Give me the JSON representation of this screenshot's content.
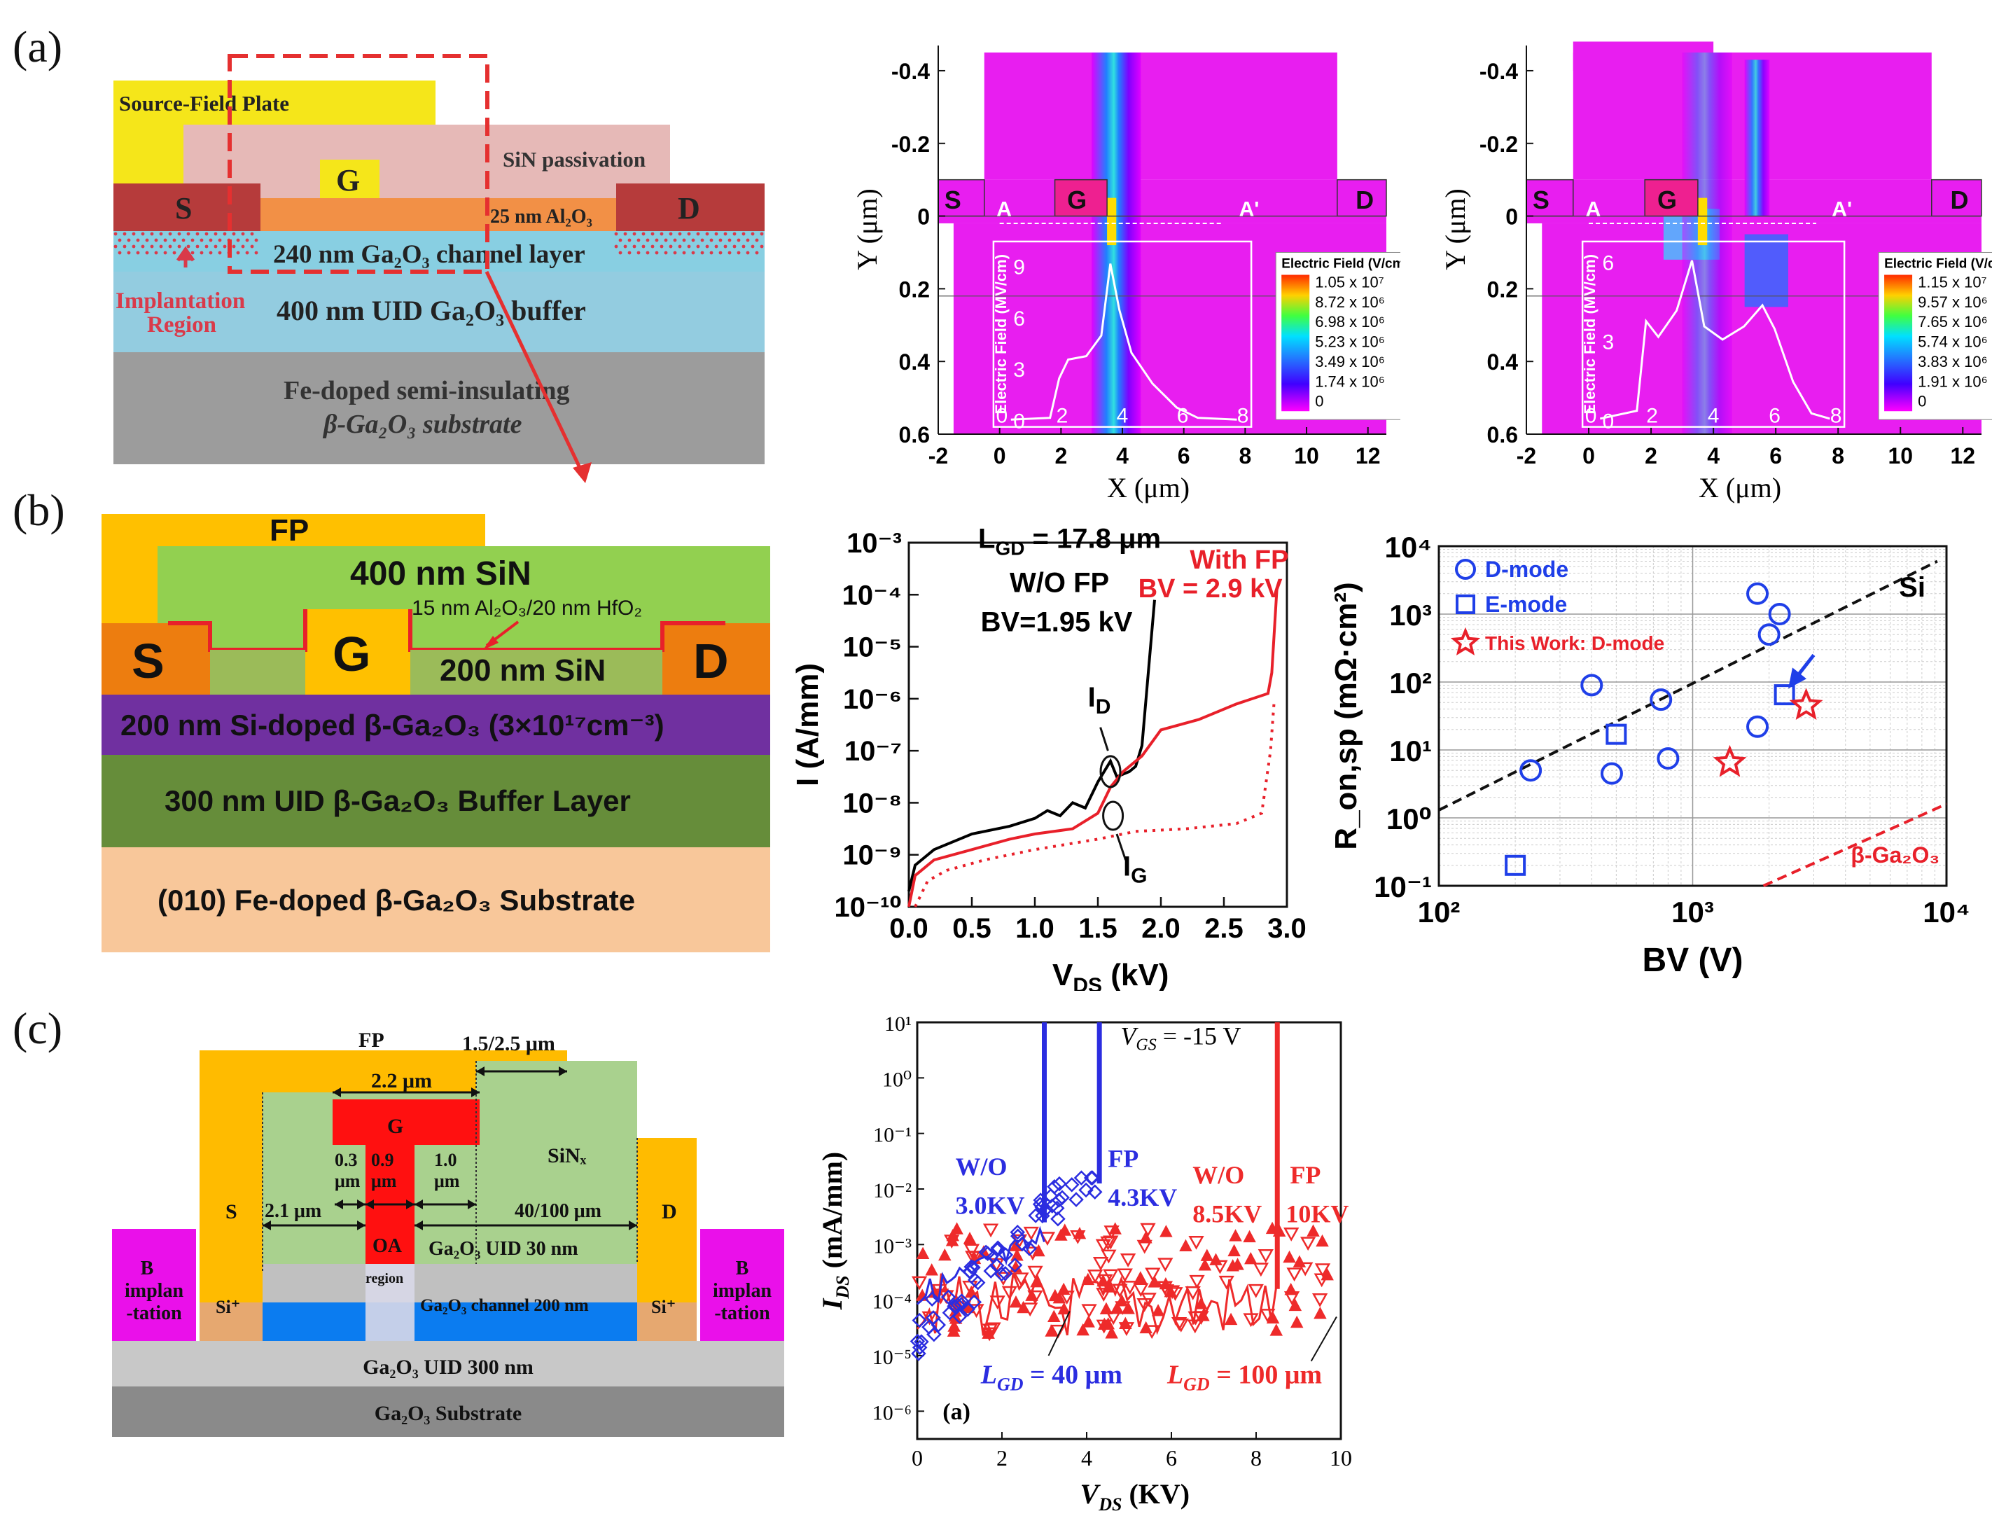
{
  "labels": {
    "a": "(a)",
    "b": "(b)",
    "c": "(c)"
  },
  "a_struct": {
    "fp": "Source-Field Plate",
    "sin": "SiN passivation",
    "gate": "G",
    "source": "S",
    "drain": "D",
    "oxide": "25 nm Al₂O₃",
    "channel": "240 nm Ga₂O₃ channel layer",
    "implant_1": "Implantation",
    "implant_2": "Region",
    "buffer": "400 nm UID Ga₂O₃ buffer",
    "substrate_1": "Fe-doped semi-insulating",
    "substrate_2": "β-Ga₂O₃ substrate"
  },
  "a_sim1": {
    "ylabel": "Y (μm)",
    "xlabel": "X (μm)",
    "yticks": [
      "-0.4",
      "-0.2",
      "0",
      "0.2",
      "0.4",
      "0.6"
    ],
    "xticks": [
      "-2",
      "0",
      "2",
      "4",
      "6",
      "8",
      "10",
      "12"
    ],
    "S": "S",
    "G": "G",
    "D": "D",
    "A": "A",
    "A2": "A'",
    "inset_ylabel": "Electric Field (MV/cm)",
    "inset_yticks": [
      "0",
      "3",
      "6",
      "9"
    ],
    "inset_xticks": [
      "0",
      "2",
      "4",
      "6",
      "8"
    ],
    "legend_title": "Electric Field (V/cm)",
    "legend": [
      "1.05 x 10⁷",
      "8.72 x 10⁶",
      "6.98 x 10⁶",
      "5.23 x 10⁶",
      "3.49 x 10⁶",
      "1.74 x 10⁶",
      "0"
    ]
  },
  "a_sim2": {
    "ylabel": "Y (μm)",
    "xlabel": "X (μm)",
    "yticks": [
      "-0.4",
      "-0.2",
      "0",
      "0.2",
      "0.4",
      "0.6"
    ],
    "xticks": [
      "-2",
      "0",
      "2",
      "4",
      "6",
      "8",
      "10",
      "12"
    ],
    "S": "S",
    "G": "G",
    "D": "D",
    "A": "A",
    "A2": "A'",
    "inset_ylabel": "Electric Field (MV/cm)",
    "inset_yticks": [
      "0",
      "3",
      "6"
    ],
    "inset_xticks": [
      "0",
      "2",
      "4",
      "6",
      "8"
    ],
    "legend_title": "Electric Field (V/cm)",
    "legend": [
      "1.15 x 10⁷",
      "9.57 x 10⁶",
      "7.65 x 10⁶",
      "5.74 x 10⁶",
      "3.83 x 10⁶",
      "1.91 x 10⁶",
      "0"
    ]
  },
  "b_struct": {
    "fp": "FP",
    "sin": "400 nm SiN",
    "dielectric": "15 nm Al₂O₃/20 nm HfO₂",
    "source": "S",
    "gate": "G",
    "drain": "D",
    "sin2": "200 nm SiN",
    "channel": "200 nm Si-doped β-Ga₂O₃ (3×10¹⁷cm⁻³)",
    "buffer": "300 nm UID β-Ga₂O₃  Buffer Layer",
    "substrate": "(010) Fe-doped β-Ga₂O₃  Substrate"
  },
  "b_iv": {
    "ylabel": "I (A/mm)",
    "xlabel": "V",
    "xlabel_sub": "DS",
    "xlabel_unit": " (kV)",
    "yticks": [
      "10⁻³",
      "10⁻⁴",
      "10⁻⁵",
      "10⁻⁶",
      "10⁻⁷",
      "10⁻⁸",
      "10⁻⁹",
      "10⁻¹⁰"
    ],
    "xticks": [
      "0.0",
      "0.5",
      "1.0",
      "1.5",
      "2.0",
      "2.5",
      "3.0"
    ],
    "lgd": "L",
    "lgd_sub": "GD",
    "lgd_val": " = 17.8 μm",
    "wo_fp": "W/O FP",
    "bv_wo": "BV=1.95 kV",
    "with_fp": "With FP",
    "bv_with": "BV = 2.9 kV",
    "id": "I",
    "id_sub": "D",
    "ig": "I",
    "ig_sub": "G",
    "colors": {
      "wo": "#000000",
      "with": "#e8202a"
    }
  },
  "chart_data": [
    {
      "type": "scatter",
      "title": "",
      "xlabel": "BV (V)",
      "ylabel": "R_on,sp (mΩ·cm²)",
      "xscale": "log",
      "yscale": "log",
      "xlim": [
        100,
        10000
      ],
      "ylim": [
        0.1,
        10000
      ],
      "xticks": [
        "10²",
        "10³",
        "10⁴"
      ],
      "yticks": [
        "10⁴",
        "10³",
        "10²",
        "10¹",
        "10⁰",
        "10⁻¹"
      ],
      "legend": [
        "D-mode",
        "E-mode",
        "This Work: D-mode"
      ],
      "si_label": "Si",
      "ga_label": "β-Ga₂O₃",
      "series": [
        {
          "name": "D-mode",
          "marker": "circle",
          "points": [
            [
              230,
              5
            ],
            [
              400,
              90
            ],
            [
              480,
              4.5
            ],
            [
              750,
              55
            ],
            [
              800,
              7.5
            ],
            [
              1800,
              2000
            ],
            [
              1800,
              22
            ],
            [
              2000,
              500
            ],
            [
              2200,
              1000
            ]
          ]
        },
        {
          "name": "E-mode",
          "marker": "square",
          "points": [
            [
              200,
              0.2
            ],
            [
              500,
              17
            ],
            [
              2300,
              65
            ]
          ]
        },
        {
          "name": "This Work: D-mode",
          "marker": "star",
          "points": [
            [
              1400,
              6.5
            ],
            [
              2800,
              45
            ]
          ]
        }
      ]
    }
  ],
  "c_struct": {
    "fp": "FP",
    "dim_fp": "1.5/2.5 μm",
    "dim_gate": "2.2 μm",
    "gate": "G",
    "sin": "SiNₓ",
    "source": "S",
    "drain": "D",
    "d03": "0.3",
    "d03b": "μm",
    "d09": "0.9",
    "d09b": "μm",
    "d10": "1.0",
    "d10b": "μm",
    "d21": "2.1 μm",
    "d40": "40/100 μm",
    "oa": "OA",
    "oa2": "region",
    "uid30": "Ga₂O₃ UID  30 nm",
    "channel": "Ga₂O₃ channel 200 nm",
    "si_plus": "Si⁺",
    "b_1": "B",
    "b_2": "implan",
    "b_3": "-tation",
    "b2_1": "B",
    "b2_2": "implan",
    "b2_3": "-tation",
    "uid300": "Ga₂O₃ UID 300 nm",
    "substrate": "Ga₂O₃ Substrate"
  },
  "c_iv": {
    "ylabel": "I",
    "ylabel_sub": "DS",
    "ylabel_unit": " (mA/mm)",
    "xlabel": "V",
    "xlabel_sub": "DS",
    "xlabel_unit": " (KV)",
    "yticks": [
      "10¹",
      "10⁰",
      "10⁻¹",
      "10⁻²",
      "10⁻³",
      "10⁻⁴",
      "10⁻⁵",
      "10⁻⁶"
    ],
    "xticks": [
      "0",
      "2",
      "4",
      "6",
      "8",
      "10"
    ],
    "vgs": "V",
    "vgs_sub": "GS",
    "vgs_val": " = -15 V",
    "wo_blue": "W/O",
    "wo_blue_v": "3.0KV",
    "fp_blue": "FP",
    "fp_blue_v": "4.3KV",
    "wo_red": "W/O",
    "wo_red_v": "8.5KV",
    "fp_red": "FP",
    "fp_red_v": "10KV",
    "lgd40": "L",
    "lgd40_sub": "GD",
    "lgd40_val": " = 40 μm",
    "lgd100": "L",
    "lgd100_sub": "GD",
    "lgd100_val": " = 100 μm",
    "inner_label": "(a)",
    "colors": {
      "blue": "#2b2de0",
      "red": "#ee2a2a"
    }
  }
}
